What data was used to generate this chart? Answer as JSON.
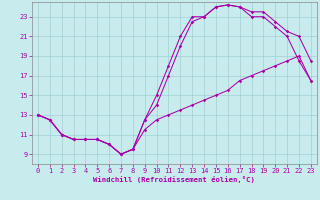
{
  "xlabel": "Windchill (Refroidissement éolien,°C)",
  "xlim": [
    -0.5,
    23.5
  ],
  "ylim": [
    8.0,
    24.5
  ],
  "xticks": [
    0,
    1,
    2,
    3,
    4,
    5,
    6,
    7,
    8,
    9,
    10,
    11,
    12,
    13,
    14,
    15,
    16,
    17,
    18,
    19,
    20,
    21,
    22,
    23
  ],
  "yticks": [
    9,
    11,
    13,
    15,
    17,
    19,
    21,
    23
  ],
  "bg_color": "#c8ecee",
  "grid_color": "#a0d0d4",
  "line_color": "#aa00aa",
  "curve1_x": [
    0,
    1,
    2,
    3,
    4,
    5,
    6,
    7,
    8,
    9,
    10,
    11,
    12,
    13,
    14,
    15,
    16,
    17,
    18,
    19,
    20,
    21,
    22,
    23
  ],
  "curve1_y": [
    13,
    12.5,
    11,
    10.5,
    10.5,
    10.5,
    10,
    9,
    9.5,
    12.5,
    15,
    18,
    21,
    23,
    23,
    24,
    24.2,
    24,
    23,
    23,
    22,
    21,
    18.5,
    16.5
  ],
  "curve2_x": [
    0,
    1,
    2,
    3,
    4,
    5,
    6,
    7,
    8,
    9,
    10,
    11,
    12,
    13,
    14,
    15,
    16,
    17,
    18,
    19,
    20,
    21,
    22,
    23
  ],
  "curve2_y": [
    13,
    12.5,
    11,
    10.5,
    10.5,
    10.5,
    10,
    9,
    9.5,
    12.5,
    14,
    17,
    20,
    22.5,
    23,
    24,
    24.2,
    24,
    23.5,
    23.5,
    22.5,
    21.5,
    21,
    18.5
  ],
  "curve3_x": [
    0,
    1,
    2,
    3,
    4,
    5,
    6,
    7,
    8,
    9,
    10,
    11,
    12,
    13,
    14,
    15,
    16,
    17,
    18,
    19,
    20,
    21,
    22,
    23
  ],
  "curve3_y": [
    13,
    12.5,
    11,
    10.5,
    10.5,
    10.5,
    10,
    9,
    9.5,
    11.5,
    12.5,
    13,
    13.5,
    14,
    14.5,
    15,
    15.5,
    16.5,
    17,
    17.5,
    18,
    18.5,
    19,
    16.5
  ]
}
